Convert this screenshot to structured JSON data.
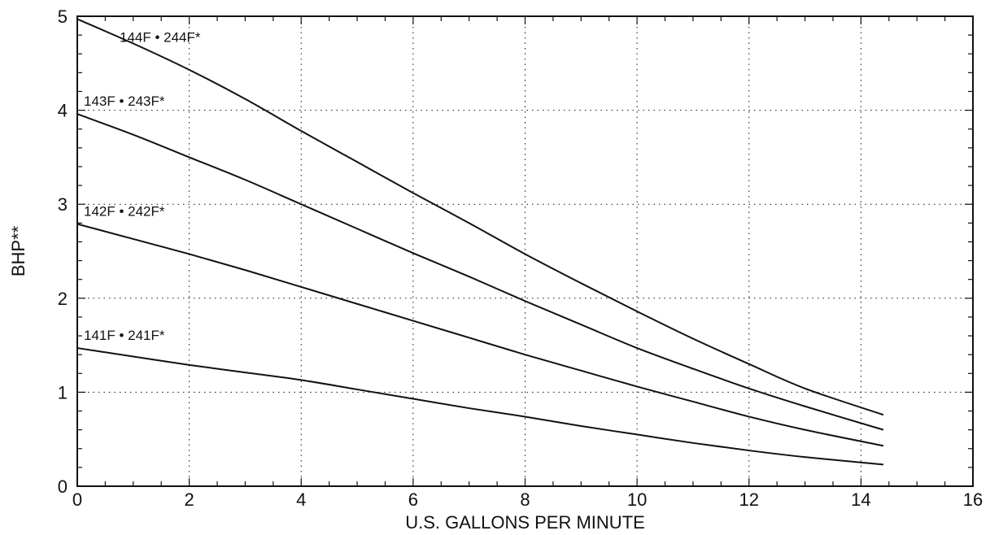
{
  "chart_data": {
    "type": "line",
    "title": "",
    "xlabel": "U.S. GALLONS PER MINUTE",
    "ylabel": "BHP**",
    "xlim": [
      0,
      16
    ],
    "ylim": [
      0,
      5
    ],
    "xticks": [
      "0",
      "2",
      "4",
      "6",
      "8",
      "10",
      "12",
      "14",
      "16"
    ],
    "yticks": [
      "0",
      "1",
      "2",
      "3",
      "4",
      "5"
    ],
    "grid": true,
    "grid_style": "dotted",
    "legend": "none",
    "line_color": "#111111",
    "series": [
      {
        "name": "144F • 244F*",
        "x": [
          0,
          1,
          2,
          3,
          4,
          5,
          6,
          7,
          8,
          9,
          10,
          11,
          12,
          13,
          14.4
        ],
        "y": [
          4.97,
          4.71,
          4.43,
          4.12,
          3.78,
          3.45,
          3.12,
          2.8,
          2.47,
          2.16,
          1.86,
          1.57,
          1.3,
          1.04,
          0.76
        ]
      },
      {
        "name": "143F • 243F*",
        "x": [
          0,
          1,
          2,
          3,
          4,
          5,
          6,
          7,
          8,
          9,
          10,
          11,
          12,
          13,
          14.4
        ],
        "y": [
          3.96,
          3.74,
          3.5,
          3.26,
          3.0,
          2.74,
          2.48,
          2.23,
          1.97,
          1.72,
          1.47,
          1.25,
          1.04,
          0.85,
          0.6
        ]
      },
      {
        "name": "142F • 242F*",
        "x": [
          0,
          1,
          2,
          3,
          4,
          5,
          6,
          7,
          8,
          9,
          10,
          11,
          12,
          13,
          14.4
        ],
        "y": [
          2.79,
          2.63,
          2.47,
          2.3,
          2.12,
          1.94,
          1.76,
          1.58,
          1.4,
          1.23,
          1.06,
          0.9,
          0.74,
          0.6,
          0.43
        ]
      },
      {
        "name": "141F • 241F*",
        "x": [
          0,
          1,
          2,
          3,
          4,
          5,
          6,
          7,
          8,
          9,
          10,
          11,
          12,
          13,
          14.4
        ],
        "y": [
          1.47,
          1.38,
          1.29,
          1.21,
          1.13,
          1.03,
          0.93,
          0.83,
          0.74,
          0.64,
          0.55,
          0.46,
          0.38,
          0.31,
          0.23
        ]
      }
    ]
  }
}
